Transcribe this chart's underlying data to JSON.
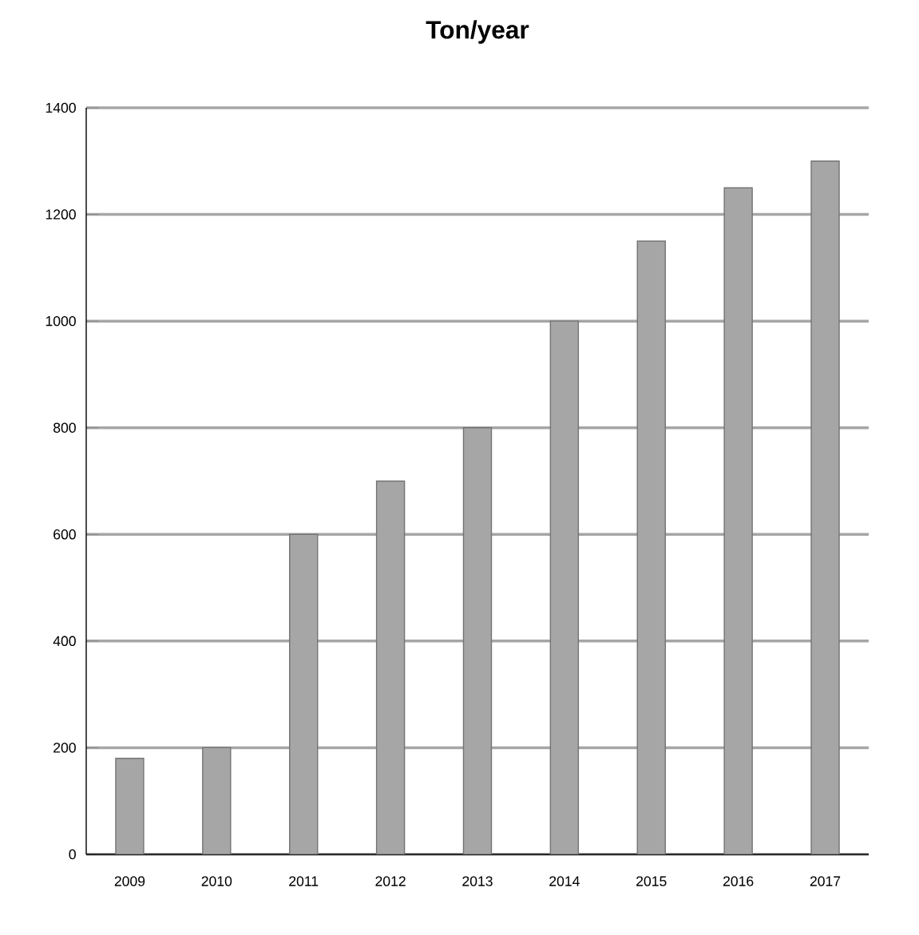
{
  "chart_data": {
    "type": "bar",
    "title": "Ton/year",
    "categories": [
      "2009",
      "2010",
      "2011",
      "2012",
      "2013",
      "2014",
      "2015",
      "2016",
      "2017"
    ],
    "values": [
      180,
      200,
      600,
      700,
      800,
      1000,
      1150,
      1250,
      1300
    ],
    "color": "#a6a6a6",
    "ylim": [
      0,
      1400
    ],
    "yticks": [
      0,
      200,
      400,
      600,
      800,
      1000,
      1200,
      1400
    ],
    "grid": "y"
  }
}
